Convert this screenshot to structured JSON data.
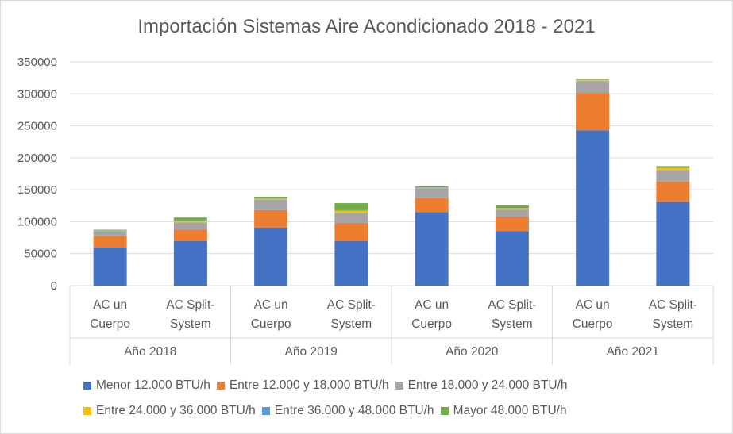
{
  "chart_data": {
    "type": "bar",
    "stacked": true,
    "title": "Importación Sistemas Aire Acondicionado 2018 - 2021",
    "xlabel": "",
    "ylabel": "",
    "ylim": [
      0,
      350000
    ],
    "yticks": [
      "0",
      "50000",
      "100000",
      "150000",
      "200000",
      "250000",
      "300000",
      "350000"
    ],
    "grid": true,
    "legend_position": "bottom",
    "groups": [
      "Año 2018",
      "Año 2019",
      "Año 2020",
      "Año 2021"
    ],
    "categories": [
      [
        "AC un",
        "Cuerpo"
      ],
      [
        "AC Split-",
        "System"
      ],
      [
        "AC un",
        "Cuerpo"
      ],
      [
        "AC Split-",
        "System"
      ],
      [
        "AC un",
        "Cuerpo"
      ],
      [
        "AC Split-",
        "System"
      ],
      [
        "AC un",
        "Cuerpo"
      ],
      [
        "AC Split-",
        "System"
      ]
    ],
    "series": [
      {
        "name": "Menor 12.000 BTU/h",
        "color": "#4472c4",
        "values": [
          60000,
          70000,
          91000,
          70000,
          115000,
          85000,
          243000,
          131000
        ]
      },
      {
        "name": "Entre 12.000 y 18.000 BTU/h",
        "color": "#ed7d31",
        "values": [
          17000,
          18000,
          27000,
          28000,
          22000,
          23000,
          58000,
          32000
        ]
      },
      {
        "name": "Entre 18.000 y 24.000 BTU/h",
        "color": "#a5a5a5",
        "values": [
          8000,
          11000,
          16000,
          16000,
          15000,
          11000,
          19000,
          18000
        ]
      },
      {
        "name": "Entre 24.000 y 36.000 BTU/h",
        "color": "#ffc000",
        "values": [
          1000,
          2000,
          2000,
          3000,
          1000,
          2000,
          2000,
          3000
        ]
      },
      {
        "name": "Entre 36.000 y 48.000 BTU/h",
        "color": "#5b9bd5",
        "values": [
          500,
          500,
          1000,
          1000,
          500,
          500,
          500,
          1000
        ]
      },
      {
        "name": "Mayor 48.000 BTU/h",
        "color": "#70ad47",
        "values": [
          1000,
          5000,
          2000,
          11000,
          2000,
          4000,
          1000,
          2000
        ]
      }
    ]
  }
}
